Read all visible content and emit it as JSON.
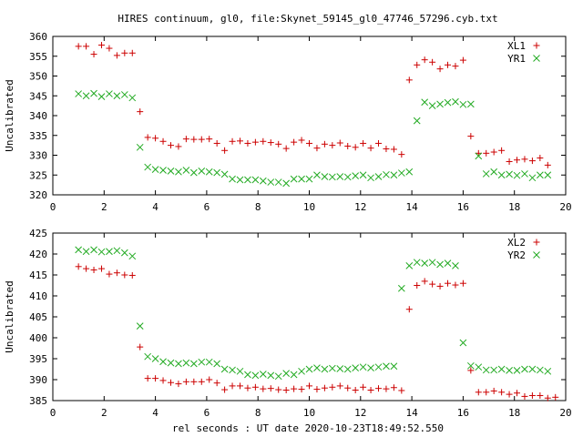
{
  "figure": {
    "title": "HIRES continuum, gl0, file:Skynet_59145_gl0_47746_57296.cyb.txt",
    "xlabel": "rel seconds : UT date 2020-10-23T18:49:52.550"
  },
  "colors": {
    "series1": "#cc0000",
    "series2": "#22aa22",
    "axes": "#000000"
  },
  "chart_data": [
    {
      "type": "scatter",
      "title": "HIRES continuum, gl0, file:Skynet_59145_gl0_47746_57296.cyb.txt",
      "xlabel": "",
      "ylabel": "Uncalibrated",
      "xlim": [
        0,
        20
      ],
      "ylim": [
        320,
        360
      ],
      "xticks": [
        0,
        2,
        4,
        6,
        8,
        10,
        12,
        14,
        16,
        18,
        20
      ],
      "yticks": [
        320,
        325,
        330,
        335,
        340,
        345,
        350,
        355,
        360
      ],
      "legend_position": "top-right",
      "series": [
        {
          "name": "XL1",
          "marker": "plus",
          "color": "#cc0000",
          "x": [
            1.0,
            1.3,
            1.6,
            1.9,
            2.2,
            2.5,
            2.8,
            3.1,
            3.4,
            3.7,
            4.0,
            4.3,
            4.6,
            4.9,
            5.2,
            5.5,
            5.8,
            6.1,
            6.4,
            6.7,
            7.0,
            7.3,
            7.6,
            7.9,
            8.2,
            8.5,
            8.8,
            9.1,
            9.4,
            9.7,
            10.0,
            10.3,
            10.6,
            10.9,
            11.2,
            11.5,
            11.8,
            12.1,
            12.4,
            12.7,
            13.0,
            13.3,
            13.6,
            13.9,
            14.2,
            14.5,
            14.8,
            15.1,
            15.4,
            15.7,
            16.0,
            16.3,
            16.6,
            16.9,
            17.2,
            17.5,
            17.8,
            18.1,
            18.4,
            18.7,
            19.0,
            19.3
          ],
          "y": [
            357.5,
            357.5,
            355.5,
            357.8,
            357.0,
            355.2,
            355.8,
            355.8,
            341.0,
            334.5,
            334.3,
            333.5,
            332.5,
            332.2,
            334.1,
            334.0,
            334.0,
            334.1,
            333.0,
            331.2,
            333.5,
            333.6,
            333.0,
            333.3,
            333.5,
            333.2,
            332.8,
            331.7,
            333.3,
            333.8,
            333.0,
            331.8,
            332.8,
            332.5,
            333.1,
            332.3,
            332.0,
            333.0,
            331.8,
            333.0,
            331.6,
            331.5,
            330.2,
            349.0,
            352.8,
            354.1,
            353.5,
            351.8,
            352.8,
            352.5,
            354.0,
            334.8,
            330.5,
            330.5,
            330.8,
            331.2,
            328.4,
            328.8,
            329.0,
            328.6,
            329.3,
            327.5
          ],
          "note": "last point at x 19.6: 328.4"
        },
        {
          "name": "YR1",
          "marker": "cross",
          "color": "#22aa22",
          "x": [
            1.0,
            1.3,
            1.6,
            1.9,
            2.2,
            2.5,
            2.8,
            3.1,
            3.4,
            3.7,
            4.0,
            4.3,
            4.6,
            4.9,
            5.2,
            5.5,
            5.8,
            6.1,
            6.4,
            6.7,
            7.0,
            7.3,
            7.6,
            7.9,
            8.2,
            8.5,
            8.8,
            9.1,
            9.4,
            9.7,
            10.0,
            10.3,
            10.6,
            10.9,
            11.2,
            11.5,
            11.8,
            12.1,
            12.4,
            12.7,
            13.0,
            13.3,
            13.6,
            13.9,
            14.2,
            14.5,
            14.8,
            15.1,
            15.4,
            15.7,
            16.0,
            16.3,
            16.6,
            16.9,
            17.2,
            17.5,
            17.8,
            18.1,
            18.4,
            18.7,
            19.0,
            19.3
          ],
          "y": [
            345.5,
            345.0,
            345.6,
            344.8,
            345.5,
            345.0,
            345.3,
            344.5,
            332.0,
            327.0,
            326.4,
            326.2,
            326.0,
            325.8,
            326.2,
            325.6,
            326.0,
            325.8,
            325.6,
            325.2,
            324.0,
            323.8,
            323.8,
            323.8,
            323.5,
            323.2,
            323.2,
            322.9,
            324.0,
            324.0,
            324.0,
            325.0,
            324.6,
            324.5,
            324.6,
            324.5,
            324.8,
            325.0,
            324.3,
            324.6,
            325.1,
            325.0,
            325.5,
            325.8,
            338.7,
            343.4,
            342.5,
            342.9,
            343.3,
            343.5,
            342.8,
            342.9,
            329.8,
            325.3,
            325.8,
            325.0,
            325.2,
            324.9,
            325.3,
            324.3,
            325.0,
            325.0
          ],
          "note": "last point at x 19.6: 324.5"
        }
      ]
    },
    {
      "type": "scatter",
      "title": "",
      "xlabel": "rel seconds : UT date 2020-10-23T18:49:52.550",
      "ylabel": "Uncalibrated",
      "xlim": [
        0,
        20
      ],
      "ylim": [
        385,
        425
      ],
      "xticks": [
        0,
        2,
        4,
        6,
        8,
        10,
        12,
        14,
        16,
        18,
        20
      ],
      "yticks": [
        385,
        390,
        395,
        400,
        405,
        410,
        415,
        420,
        425
      ],
      "legend_position": "top-right",
      "series": [
        {
          "name": "XL2",
          "marker": "plus",
          "color": "#cc0000",
          "x": [
            1.0,
            1.3,
            1.6,
            1.9,
            2.2,
            2.5,
            2.8,
            3.1,
            3.4,
            3.7,
            4.0,
            4.3,
            4.6,
            4.9,
            5.2,
            5.5,
            5.8,
            6.1,
            6.4,
            6.7,
            7.0,
            7.3,
            7.6,
            7.9,
            8.2,
            8.5,
            8.8,
            9.1,
            9.4,
            9.7,
            10.0,
            10.3,
            10.6,
            10.9,
            11.2,
            11.5,
            11.8,
            12.1,
            12.4,
            12.7,
            13.0,
            13.3,
            13.6,
            13.9,
            14.2,
            14.5,
            14.8,
            15.1,
            15.4,
            15.7,
            16.0,
            16.3,
            16.6,
            16.9,
            17.2,
            17.5,
            17.8,
            18.1,
            18.4,
            18.7,
            19.0,
            19.3,
            19.6
          ],
          "y": [
            417.0,
            416.5,
            416.2,
            416.5,
            415.2,
            415.5,
            415.0,
            414.9,
            397.8,
            390.3,
            390.3,
            389.8,
            389.3,
            389.0,
            389.5,
            389.5,
            389.5,
            390.0,
            389.2,
            387.6,
            388.5,
            388.5,
            388.0,
            388.2,
            387.8,
            387.9,
            387.6,
            387.5,
            387.8,
            387.7,
            388.5,
            387.7,
            388.0,
            388.2,
            388.5,
            388.0,
            387.5,
            388.2,
            387.5,
            387.9,
            387.8,
            388.1,
            387.4,
            406.8,
            412.5,
            413.5,
            412.8,
            412.3,
            413.0,
            412.6,
            413.0,
            392.2,
            387.0,
            387.0,
            387.3,
            387.0,
            386.5,
            386.8,
            386.0,
            386.2,
            386.2,
            385.6,
            385.8
          ]
        },
        {
          "name": "YR2",
          "marker": "cross",
          "color": "#22aa22",
          "x": [
            1.0,
            1.3,
            1.6,
            1.9,
            2.2,
            2.5,
            2.8,
            3.1,
            3.4,
            3.7,
            4.0,
            4.3,
            4.6,
            4.9,
            5.2,
            5.5,
            5.8,
            6.1,
            6.4,
            6.7,
            7.0,
            7.3,
            7.6,
            7.9,
            8.2,
            8.5,
            8.8,
            9.1,
            9.4,
            9.7,
            10.0,
            10.3,
            10.6,
            10.9,
            11.2,
            11.5,
            11.8,
            12.1,
            12.4,
            12.7,
            13.0,
            13.3,
            13.6,
            13.9,
            14.2,
            14.5,
            14.8,
            15.1,
            15.4,
            15.7,
            16.0,
            16.3,
            16.6,
            16.9,
            17.2,
            17.5,
            17.8,
            18.1,
            18.4,
            18.7,
            19.0,
            19.3
          ],
          "y": [
            421.0,
            420.6,
            421.0,
            420.5,
            420.6,
            420.8,
            420.3,
            419.5,
            402.8,
            395.5,
            395.0,
            394.3,
            394.0,
            393.8,
            394.0,
            393.8,
            394.2,
            394.2,
            393.8,
            392.5,
            392.3,
            392.0,
            391.2,
            391.0,
            391.3,
            391.0,
            390.8,
            391.5,
            391.2,
            392.0,
            392.5,
            392.8,
            392.5,
            392.7,
            392.6,
            392.5,
            392.8,
            393.0,
            392.8,
            393.0,
            393.2,
            393.2,
            411.8,
            417.2,
            418.0,
            417.8,
            418.0,
            417.5,
            417.8,
            417.2,
            398.8,
            393.3,
            393.0,
            392.3,
            392.3,
            392.5,
            392.2,
            392.2,
            392.5,
            392.5,
            392.3,
            392.0
          ]
        }
      ]
    }
  ]
}
